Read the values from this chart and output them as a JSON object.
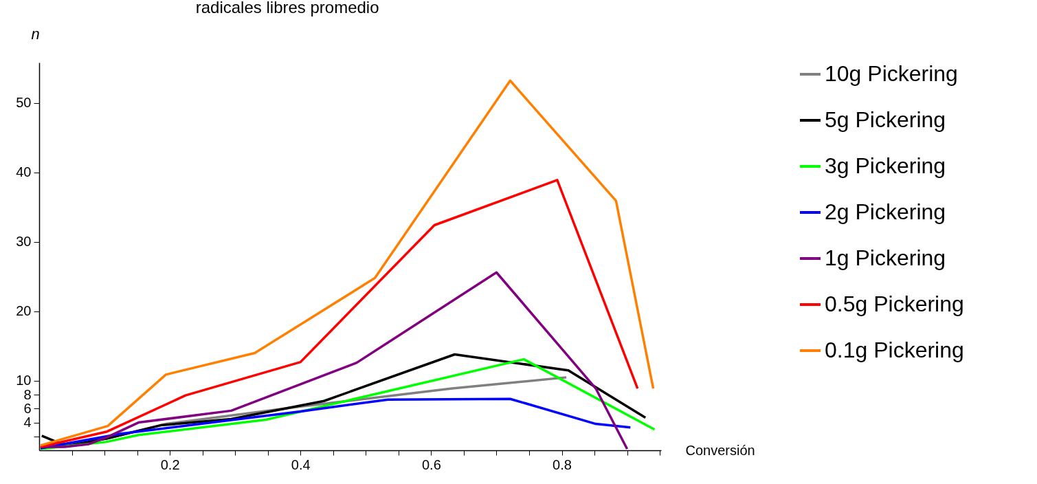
{
  "chart_data": {
    "type": "line",
    "title": "radicales libres promedio",
    "xlabel": "Conversión",
    "ylabel": "n",
    "xlim": [
      0,
      0.952
    ],
    "ylim": [
      0,
      55.8
    ],
    "xticks": [
      {
        "value": 0.05,
        "label": null
      },
      {
        "value": 0.1,
        "label": null
      },
      {
        "value": 0.15,
        "label": null
      },
      0.2,
      {
        "value": 0.25,
        "label": null
      },
      {
        "value": 0.3,
        "label": null
      },
      {
        "value": 0.35,
        "label": null
      },
      0.4,
      {
        "value": 0.45,
        "label": null
      },
      {
        "value": 0.5,
        "label": null
      },
      {
        "value": 0.55,
        "label": null
      },
      0.6,
      {
        "value": 0.65,
        "label": null
      },
      {
        "value": 0.7,
        "label": null
      },
      {
        "value": 0.75,
        "label": null
      },
      0.8,
      {
        "value": 0.85,
        "label": null
      },
      {
        "value": 0.9,
        "label": null
      },
      {
        "value": 0.95,
        "label": null
      }
    ],
    "yticks": [
      {
        "value": 2,
        "label": null
      },
      4,
      6,
      8,
      10,
      20,
      30,
      40,
      50
    ],
    "grid": false,
    "legend": "right",
    "marker": "none",
    "line_style": "solid",
    "series": [
      {
        "name": "10g Pickering",
        "color": "#808080",
        "x": [
          0.002,
          0.104,
          0.194,
          0.4,
          0.632,
          0.807
        ],
        "values": [
          0.4,
          1.7,
          3.8,
          6.3,
          8.9,
          10.5
        ]
      },
      {
        "name": "5g Pickering",
        "color": "#000000",
        "x": [
          0.004,
          0.042,
          0.104,
          0.186,
          0.294,
          0.436,
          0.636,
          0.81,
          0.928
        ],
        "values": [
          2.1,
          0.6,
          1.7,
          3.6,
          4.5,
          7.1,
          13.8,
          11.5,
          4.7
        ]
      },
      {
        "name": "3g Pickering",
        "color": "#00ff00",
        "x": [
          0.002,
          0.102,
          0.152,
          0.347,
          0.742,
          0.942
        ],
        "values": [
          0.2,
          1.2,
          2.2,
          4.4,
          13.1,
          3.0
        ]
      },
      {
        "name": "2g Pickering",
        "color": "#0000ff",
        "x": [
          0.002,
          0.126,
          0.4,
          0.534,
          0.721,
          0.852,
          0.905
        ],
        "values": [
          0.3,
          2.4,
          5.6,
          7.3,
          7.4,
          3.8,
          3.3
        ]
      },
      {
        "name": "1g Pickering",
        "color": "#800080",
        "x": [
          0.002,
          0.039,
          0.076,
          0.104,
          0.152,
          0.294,
          0.486,
          0.7,
          0.852,
          0.9
        ],
        "values": [
          0.5,
          0.5,
          0.9,
          1.9,
          4.0,
          5.7,
          12.6,
          25.6,
          8.9,
          0.2
        ]
      },
      {
        "name": "0.5g Pickering",
        "color": "#ff0000",
        "x": [
          0.002,
          0.104,
          0.224,
          0.4,
          0.605,
          0.793,
          0.916
        ],
        "values": [
          0.5,
          2.7,
          7.9,
          12.7,
          32.4,
          38.9,
          8.9
        ]
      },
      {
        "name": "0.1g Pickering",
        "color": "#ff8000",
        "x": [
          0.002,
          0.105,
          0.194,
          0.33,
          0.514,
          0.721,
          0.883,
          0.94
        ],
        "values": [
          0.7,
          3.5,
          10.9,
          14.0,
          24.8,
          53.2,
          35.9,
          8.9
        ]
      }
    ]
  }
}
